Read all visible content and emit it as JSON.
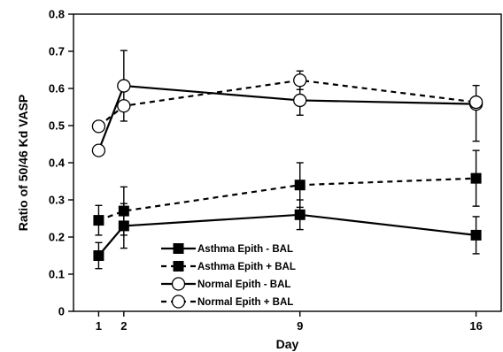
{
  "chart_data": {
    "type": "line",
    "title": "",
    "xlabel": "Day",
    "ylabel": "Ratio of 50/46 Kd VASP",
    "xlim": [
      0,
      17
    ],
    "ylim": [
      0,
      0.8
    ],
    "x_ticks": [
      1,
      2,
      9,
      16
    ],
    "y_ticks": [
      0,
      0.1,
      0.2,
      0.3,
      0.4,
      0.5,
      0.6,
      0.7,
      0.8
    ],
    "y_tick_labels": [
      "0",
      "0.1",
      "0.2",
      "0.3",
      "0.4",
      "0.5",
      "0.6",
      "0.7",
      "0.8"
    ],
    "grid": false,
    "legend_position": "bottom-center",
    "x": [
      1,
      2,
      9,
      16
    ],
    "series": [
      {
        "name": "Asthma Epith - BAL",
        "values": [
          0.15,
          0.23,
          0.26,
          0.205
        ],
        "error_up": [
          0.035,
          0.06,
          0.04,
          0.05
        ],
        "error_down": [
          0.035,
          0.06,
          0.04,
          0.05
        ],
        "line": "solid",
        "marker": "square-filled",
        "color": "#000000"
      },
      {
        "name": "Asthma Epith + BAL",
        "values": [
          0.245,
          0.27,
          0.34,
          0.358
        ],
        "error_up": [
          0.04,
          0.065,
          0.06,
          0.075
        ],
        "error_down": [
          0.04,
          0.065,
          0.06,
          0.075
        ],
        "line": "dashed",
        "marker": "square-filled",
        "color": "#000000"
      },
      {
        "name": "Normal Epith - BAL",
        "values": [
          0.433,
          0.607,
          0.568,
          0.558
        ],
        "error_up": [
          0.0,
          0.095,
          0.04,
          0.05
        ],
        "error_down": [
          0.0,
          0.095,
          0.04,
          0.1
        ],
        "line": "solid",
        "marker": "circle-open",
        "color": "#000000"
      },
      {
        "name": "Normal Epith + BAL",
        "values": [
          0.498,
          0.553,
          0.622,
          0.563
        ],
        "error_up": [
          0.0,
          0.0,
          0.025,
          0.0
        ],
        "error_down": [
          0.0,
          0.0,
          0.025,
          0.0
        ],
        "line": "dashed",
        "marker": "circle-open",
        "color": "#000000"
      }
    ]
  }
}
